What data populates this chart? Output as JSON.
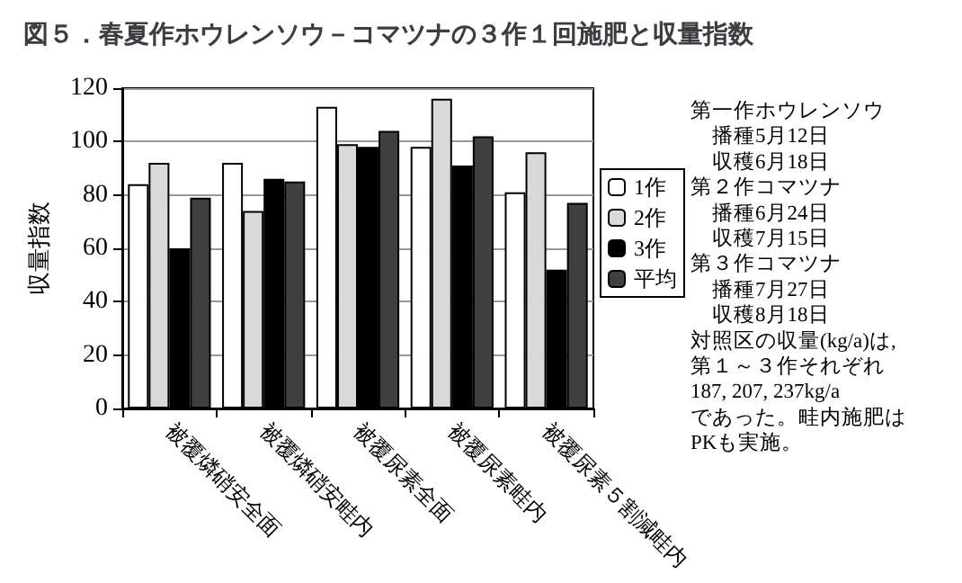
{
  "chart_data": {
    "type": "bar",
    "title": "図５．春夏作ホウレンソウ－コマツナの３作１回施肥と収量指数",
    "ylabel": "収量指数",
    "categories": [
      "被覆燐硝安全面",
      "被覆燐硝安畦内",
      "被覆尿素全面",
      "被覆尿素畦内",
      "被覆尿素５割減畦内"
    ],
    "series": [
      {
        "name": "1作",
        "color": "#ffffff",
        "values": [
          84,
          92,
          113,
          98,
          81
        ]
      },
      {
        "name": "2作",
        "color": "#d9d9d9",
        "values": [
          92,
          74,
          99,
          116,
          96
        ]
      },
      {
        "name": "3作",
        "color": "#000000",
        "values": [
          60,
          86,
          98,
          91,
          52
        ]
      },
      {
        "name": "平均",
        "color": "#404040",
        "values": [
          79,
          85,
          104,
          102,
          77
        ]
      }
    ],
    "ylim": [
      0,
      120
    ],
    "yticks": [
      0,
      20,
      40,
      60,
      80,
      100,
      120
    ],
    "grid": "y",
    "legend": "right",
    "annotations": [
      "第一作ホウレンソウ",
      "　播種5月12日",
      "　収穫6月18日",
      "第２作コマツナ",
      "　播種6月24日",
      "　収穫7月15日",
      "第３作コマツナ",
      "　播種7月27日",
      "　収穫8月18日",
      "対照区の収量(kg/a)は,",
      "第１～３作それぞれ",
      "187, 207, 237kg/a",
      "であった。畦内施肥は",
      "PKも実施。"
    ]
  }
}
